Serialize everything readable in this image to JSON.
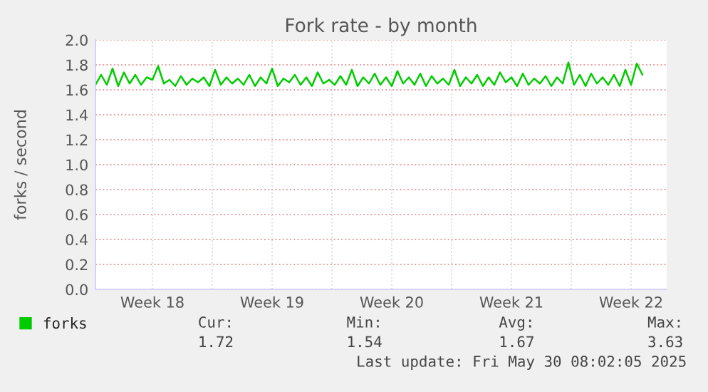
{
  "chart_data": {
    "type": "line",
    "title": "Fork rate - by month",
    "ylabel": "forks / second",
    "xlim": [
      "2025-04-28T04:00",
      "2025-05-31T14:00"
    ],
    "ylim": [
      0,
      2.0
    ],
    "xticks": [
      {
        "value": "2025-05-01T12:00",
        "label": "Week 18"
      },
      {
        "value": "2025-05-05",
        "label": null
      },
      {
        "value": "2025-05-08T12:00",
        "label": "Week 19"
      },
      {
        "value": "2025-05-12",
        "label": null
      },
      {
        "value": "2025-05-15T12:00",
        "label": "Week 20"
      },
      {
        "value": "2025-05-19",
        "label": null
      },
      {
        "value": "2025-05-22T12:00",
        "label": "Week 21"
      },
      {
        "value": "2025-05-26",
        "label": null
      },
      {
        "value": "2025-05-29T12:00",
        "label": "Week 22"
      }
    ],
    "yticks": [
      {
        "value": 0,
        "label": "0.0"
      },
      0.2,
      0.4,
      0.6,
      0.8,
      {
        "value": 1.0,
        "label": "1.0"
      },
      1.2,
      1.4,
      1.6,
      1.8,
      {
        "value": 2.0,
        "label": "2.0"
      }
    ],
    "grid": true,
    "legend": "bottom left",
    "marker": "none",
    "line_style": "solid",
    "series": [
      {
        "name": "forks",
        "color": "#00cc00",
        "x": [
          "2025-04-28T04:00",
          "2025-04-28T12:00",
          "2025-04-28T20:00",
          "2025-04-29T04:00",
          "2025-04-29T12:00",
          "2025-04-29T20:00",
          "2025-04-30T04:00",
          "2025-04-30T12:00",
          "2025-04-30T20:00",
          "2025-05-01T04:00",
          "2025-05-01T12:00",
          "2025-05-01T20:00",
          "2025-05-02T04:00",
          "2025-05-02T12:00",
          "2025-05-02T20:00",
          "2025-05-03T04:00",
          "2025-05-03T12:00",
          "2025-05-03T20:00",
          "2025-05-04T04:00",
          "2025-05-04T12:00",
          "2025-05-04T20:00",
          "2025-05-05T04:00",
          "2025-05-05T12:00",
          "2025-05-05T20:00",
          "2025-05-06T04:00",
          "2025-05-06T12:00",
          "2025-05-06T20:00",
          "2025-05-07T04:00",
          "2025-05-07T12:00",
          "2025-05-07T20:00",
          "2025-05-08T04:00",
          "2025-05-08T12:00",
          "2025-05-08T20:00",
          "2025-05-09T04:00",
          "2025-05-09T12:00",
          "2025-05-09T20:00",
          "2025-05-10T04:00",
          "2025-05-10T12:00",
          "2025-05-10T20:00",
          "2025-05-11T04:00",
          "2025-05-11T12:00",
          "2025-05-11T20:00",
          "2025-05-12T04:00",
          "2025-05-12T12:00",
          "2025-05-12T20:00",
          "2025-05-13T04:00",
          "2025-05-13T12:00",
          "2025-05-13T20:00",
          "2025-05-14T04:00",
          "2025-05-14T12:00",
          "2025-05-14T20:00",
          "2025-05-15T04:00",
          "2025-05-15T12:00",
          "2025-05-15T20:00",
          "2025-05-16T04:00",
          "2025-05-16T12:00",
          "2025-05-16T20:00",
          "2025-05-17T04:00",
          "2025-05-17T12:00",
          "2025-05-17T20:00",
          "2025-05-18T04:00",
          "2025-05-18T12:00",
          "2025-05-18T20:00",
          "2025-05-19T04:00",
          "2025-05-19T12:00",
          "2025-05-19T20:00",
          "2025-05-20T04:00",
          "2025-05-20T12:00",
          "2025-05-20T20:00",
          "2025-05-21T04:00",
          "2025-05-21T12:00",
          "2025-05-21T20:00",
          "2025-05-22T04:00",
          "2025-05-22T12:00",
          "2025-05-22T20:00",
          "2025-05-23T04:00",
          "2025-05-23T12:00",
          "2025-05-23T20:00",
          "2025-05-24T04:00",
          "2025-05-24T12:00",
          "2025-05-24T20:00",
          "2025-05-25T04:00",
          "2025-05-25T12:00",
          "2025-05-25T20:00",
          "2025-05-26T04:00",
          "2025-05-26T12:00",
          "2025-05-26T20:00",
          "2025-05-27T04:00",
          "2025-05-27T12:00",
          "2025-05-27T20:00",
          "2025-05-28T04:00",
          "2025-05-28T12:00",
          "2025-05-28T20:00",
          "2025-05-29T04:00",
          "2025-05-29T12:00",
          "2025-05-29T20:00",
          "2025-05-30T04:00"
        ],
        "values": [
          1.64,
          1.72,
          1.64,
          1.77,
          1.63,
          1.74,
          1.65,
          1.72,
          1.64,
          1.7,
          1.68,
          1.79,
          1.65,
          1.68,
          1.63,
          1.71,
          1.64,
          1.69,
          1.66,
          1.7,
          1.63,
          1.76,
          1.64,
          1.7,
          1.65,
          1.69,
          1.64,
          1.72,
          1.63,
          1.7,
          1.65,
          1.77,
          1.63,
          1.69,
          1.66,
          1.72,
          1.64,
          1.7,
          1.63,
          1.74,
          1.65,
          1.68,
          1.64,
          1.71,
          1.64,
          1.76,
          1.63,
          1.7,
          1.65,
          1.73,
          1.64,
          1.7,
          1.63,
          1.75,
          1.65,
          1.7,
          1.64,
          1.73,
          1.63,
          1.71,
          1.65,
          1.69,
          1.64,
          1.76,
          1.63,
          1.7,
          1.65,
          1.72,
          1.63,
          1.7,
          1.64,
          1.74,
          1.66,
          1.7,
          1.63,
          1.73,
          1.64,
          1.69,
          1.65,
          1.71,
          1.63,
          1.7,
          1.65,
          1.82,
          1.64,
          1.72,
          1.63,
          1.73,
          1.65,
          1.7,
          1.64,
          1.72,
          1.63,
          1.76,
          1.64,
          1.81,
          1.72
        ]
      }
    ],
    "annotations": [
      "Cur:",
      "Min:",
      "Avg:",
      "Max:",
      "1.72",
      "1.54",
      "1.67",
      "3.63",
      "Last update: Fri May 30 08:02:05 2025"
    ]
  }
}
